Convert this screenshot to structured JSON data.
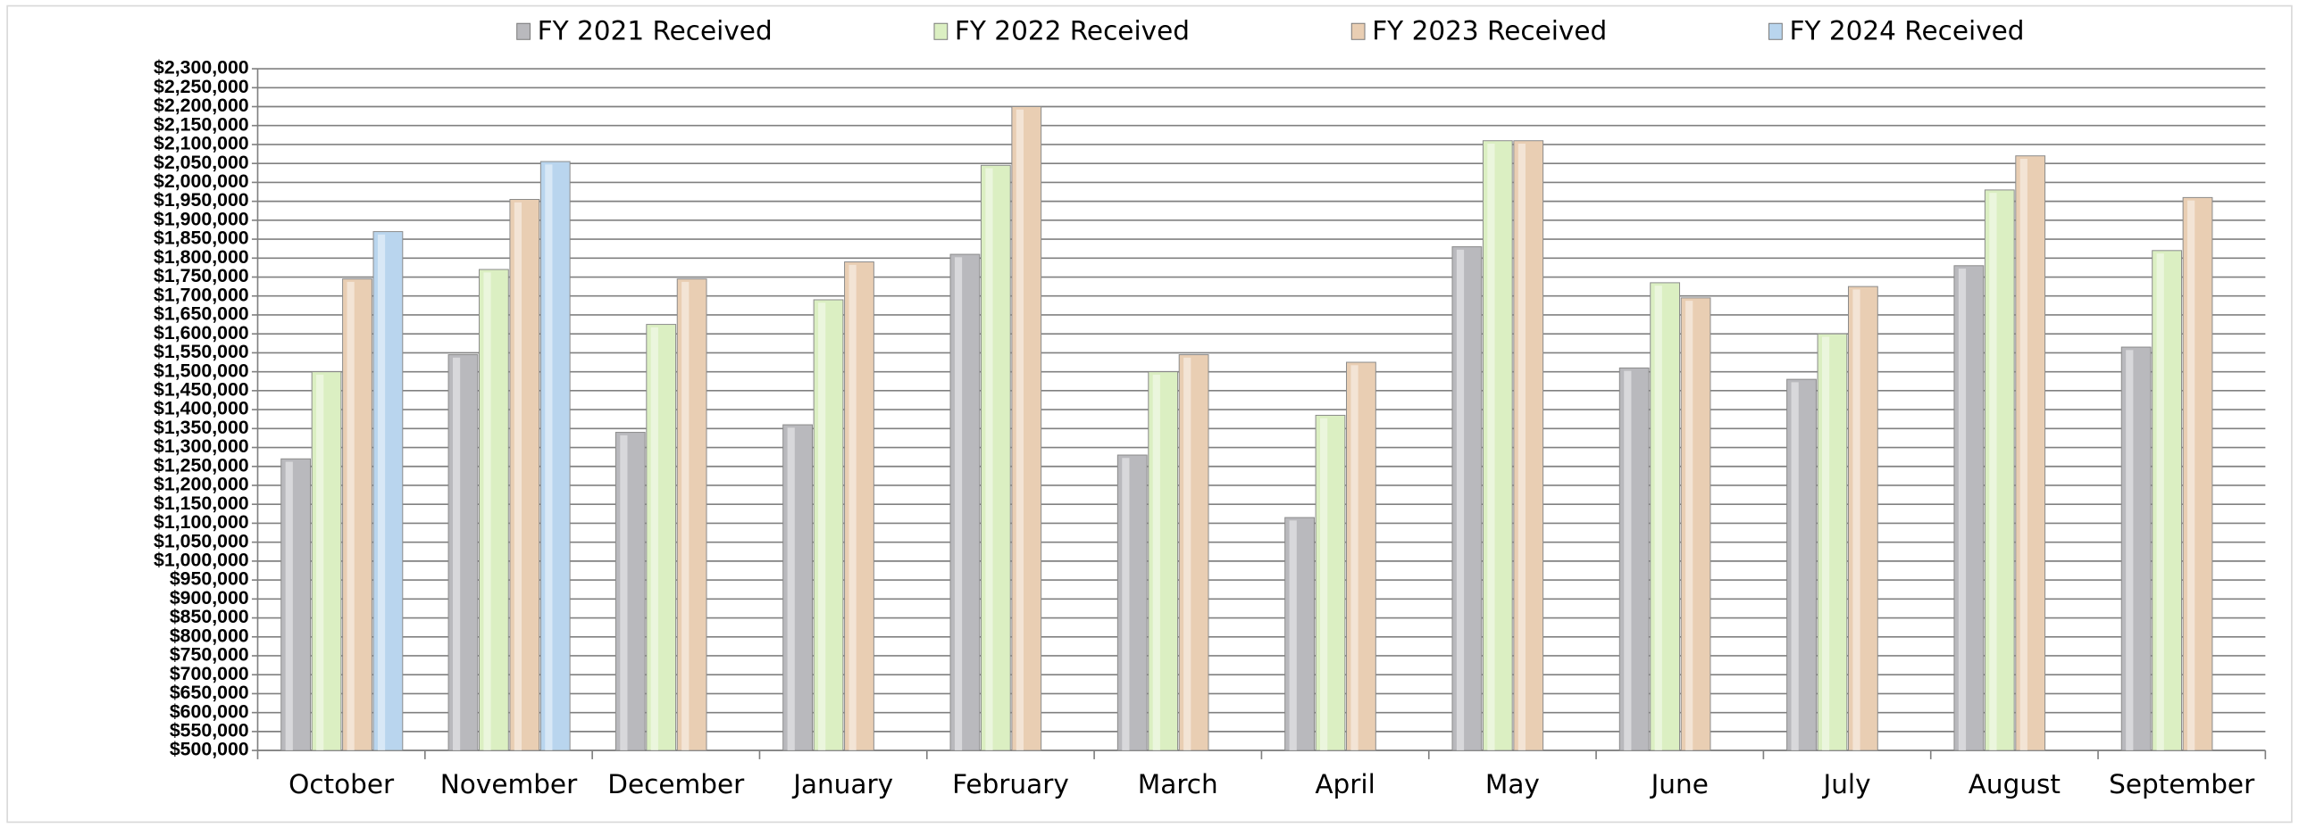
{
  "chart_data": {
    "type": "bar",
    "categories": [
      "October",
      "November",
      "December",
      "January",
      "February",
      "March",
      "April",
      "May",
      "June",
      "July",
      "August",
      "September"
    ],
    "series": [
      {
        "name": "FY 2021 Received",
        "color": "#b9b9bd",
        "values": [
          1270000,
          1545000,
          1340000,
          1360000,
          1810000,
          1280000,
          1115000,
          1830000,
          1510000,
          1480000,
          1780000,
          1565000
        ]
      },
      {
        "name": "FY 2022 Received",
        "color": "#dbefc2",
        "values": [
          1500000,
          1770000,
          1625000,
          1690000,
          2045000,
          1500000,
          1385000,
          2110000,
          1735000,
          1600000,
          1980000,
          1820000
        ]
      },
      {
        "name": "FY 2023 Received",
        "color": "#e9ceb3",
        "values": [
          1745000,
          1955000,
          1745000,
          1790000,
          2200000,
          1545000,
          1525000,
          2110000,
          1695000,
          1725000,
          2070000,
          1960000
        ]
      },
      {
        "name": "FY 2024 Received",
        "color": "#b9d5ee",
        "values": [
          1870000,
          2055000,
          null,
          null,
          null,
          null,
          null,
          null,
          null,
          null,
          null,
          null
        ]
      }
    ],
    "ylim": [
      500000,
      2300000
    ],
    "yticks": [
      {
        "value": 500000,
        "label": "$500,000"
      },
      {
        "value": 550000,
        "label": "$550,000"
      },
      {
        "value": 600000,
        "label": "$600,000"
      },
      {
        "value": 650000,
        "label": "$650,000"
      },
      {
        "value": 700000,
        "label": "$700,000"
      },
      {
        "value": 750000,
        "label": "$750,000"
      },
      {
        "value": 800000,
        "label": "$800,000"
      },
      {
        "value": 850000,
        "label": "$850,000"
      },
      {
        "value": 900000,
        "label": "$900,000"
      },
      {
        "value": 950000,
        "label": "$950,000"
      },
      {
        "value": 1000000,
        "label": "$1,000,000"
      },
      {
        "value": 1050000,
        "label": "$1,050,000"
      },
      {
        "value": 1100000,
        "label": "$1,100,000"
      },
      {
        "value": 1150000,
        "label": "$1,150,000"
      },
      {
        "value": 1200000,
        "label": "$1,200,000"
      },
      {
        "value": 1250000,
        "label": "$1,250,000"
      },
      {
        "value": 1300000,
        "label": "$1,300,000"
      },
      {
        "value": 1350000,
        "label": "$1,350,000"
      },
      {
        "value": 1400000,
        "label": "$1,400,000"
      },
      {
        "value": 1450000,
        "label": "$1,450,000"
      },
      {
        "value": 1500000,
        "label": "$1,500,000"
      },
      {
        "value": 1550000,
        "label": "$1,550,000"
      },
      {
        "value": 1600000,
        "label": "$1,600,000"
      },
      {
        "value": 1650000,
        "label": "$1,650,000"
      },
      {
        "value": 1700000,
        "label": "$1,700,000"
      },
      {
        "value": 1750000,
        "label": "$1,750,000"
      },
      {
        "value": 1800000,
        "label": "$1,800,000"
      },
      {
        "value": 1850000,
        "label": "$1,850,000"
      },
      {
        "value": 1900000,
        "label": "$1,900,000"
      },
      {
        "value": 1950000,
        "label": "$1,950,000"
      },
      {
        "value": 2000000,
        "label": "$2,000,000"
      },
      {
        "value": 2050000,
        "label": "$2,050,000"
      },
      {
        "value": 2100000,
        "label": "$2,100,000"
      },
      {
        "value": 2150000,
        "label": "$2,150,000"
      },
      {
        "value": 2200000,
        "label": "$2,200,000"
      },
      {
        "value": 2250000,
        "label": "$2,250,000"
      },
      {
        "value": 2300000,
        "label": "$2,300,000"
      }
    ],
    "grid": true,
    "legend": "top"
  }
}
